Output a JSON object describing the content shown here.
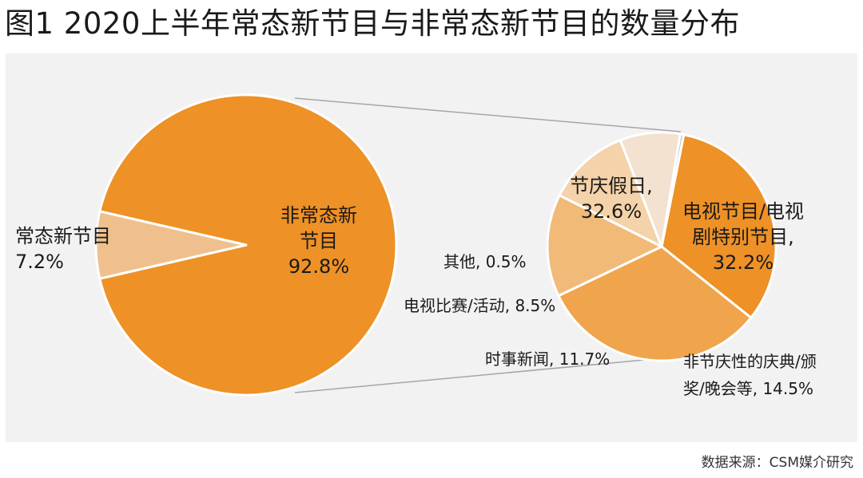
{
  "title": "图1  2020上半年常态新节目与非常态新节目的数量分布",
  "source": "数据来源：CSM媒介研究",
  "colors": {
    "background": "#f2f2f2",
    "orange_dark": "#ee9126",
    "orange_mid": "#f0a54d",
    "peach": "#f1ba78",
    "light_peach": "#f4d2aa",
    "pale": "#f3e2cf",
    "connector": "#a6a6a6"
  },
  "chart_data": [
    {
      "type": "pie",
      "slices": [
        {
          "label": "非常态新节目",
          "value": 92.8,
          "display": "92.8%",
          "color": "#ee9126"
        },
        {
          "label": "常态新节目",
          "value": 7.2,
          "display": "7.2%",
          "color": "#efc08d"
        }
      ]
    },
    {
      "type": "pie",
      "slices": [
        {
          "label": "节庆假日,",
          "value": 32.6,
          "display": "32.6%",
          "color": "#ee9126"
        },
        {
          "label": "电视节目/电视剧特别节目,",
          "value": 32.2,
          "display": "32.2%",
          "color": "#f0a54d"
        },
        {
          "label": "非节庆性的庆典/颁奖/晚会等,",
          "value": 14.5,
          "display": "14.5%",
          "color": "#f1ba78"
        },
        {
          "label": "时事新闻,",
          "value": 11.7,
          "display": "11.7%",
          "color": "#f4d2aa"
        },
        {
          "label": "电视比赛/活动,",
          "value": 8.5,
          "display": "8.5%",
          "color": "#f3e2cf"
        },
        {
          "label": "其他,",
          "value": 0.5,
          "display": "0.5%",
          "color": "#c9c9c9"
        }
      ]
    }
  ],
  "labels": {
    "main_big": {
      "line1": "非常态新",
      "line2": "节目",
      "line3": "92.8%"
    },
    "main_small": {
      "line1": "常态新节目",
      "line2": "7.2%"
    },
    "holiday": {
      "line1": "节庆假日,",
      "line2": "32.6%"
    },
    "tv_special": {
      "line1": "电视节目/电视",
      "line2": "剧特别节目,",
      "line3": "32.2%"
    },
    "celebration": {
      "line1": "非节庆性的庆典/颁",
      "line2": "奖/晚会等, 14.5%"
    },
    "news": {
      "line1": "时事新闻, 11.7%"
    },
    "contest": {
      "line1": "电视比赛/活动, 8.5%"
    },
    "other": {
      "line1": "其他, 0.5%"
    }
  }
}
